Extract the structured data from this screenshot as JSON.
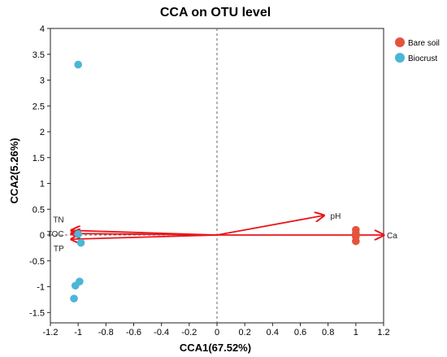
{
  "chart_data": {
    "type": "scatter",
    "title": "CCA on OTU level",
    "xlabel": "CCA1(67.52%)",
    "ylabel": "CCA2(5.26%)",
    "xlim": [
      -1.2,
      1.2
    ],
    "ylim": [
      -1.7,
      4.0
    ],
    "xticks": [
      "-1.2",
      "-1",
      "-0.8",
      "-0.6",
      "-0.4",
      "-0.2",
      "0",
      "0.2",
      "0.4",
      "0.6",
      "0.8",
      "1",
      "1.2"
    ],
    "yticks": [
      "-1.5",
      "-1",
      "-0.5",
      "0",
      "0.5",
      "1",
      "1.5",
      "2",
      "2.5",
      "3",
      "3.5",
      "4"
    ],
    "legend_position": "top-right",
    "reference_lines": "dashed lines at x=0 and y=0",
    "series": [
      {
        "name": "Bare soil",
        "color": "#e5533d",
        "points": [
          {
            "x": 1.0,
            "y": 0.1
          },
          {
            "x": 1.0,
            "y": 0.03
          },
          {
            "x": 1.0,
            "y": -0.03
          },
          {
            "x": 1.0,
            "y": -0.12
          }
        ]
      },
      {
        "name": "Biocrust",
        "color": "#4cb6d6",
        "points": [
          {
            "x": -1.0,
            "y": 3.3
          },
          {
            "x": -1.0,
            "y": 0.02
          },
          {
            "x": -0.98,
            "y": -0.15
          },
          {
            "x": -0.99,
            "y": -0.9
          },
          {
            "x": -1.02,
            "y": -0.98
          },
          {
            "x": -1.03,
            "y": -1.23
          }
        ]
      }
    ],
    "vectors": [
      {
        "label": "pH",
        "x": 0.77,
        "y": 0.38
      },
      {
        "label": "Ca",
        "x": 1.2,
        "y": 0.0
      },
      {
        "label": "TN",
        "x": -1.05,
        "y": 0.09
      },
      {
        "label": "TOC",
        "x": -1.05,
        "y": 0.03
      },
      {
        "label": "TP",
        "x": -1.05,
        "y": -0.08
      }
    ],
    "vector_color": "#e8161b"
  }
}
